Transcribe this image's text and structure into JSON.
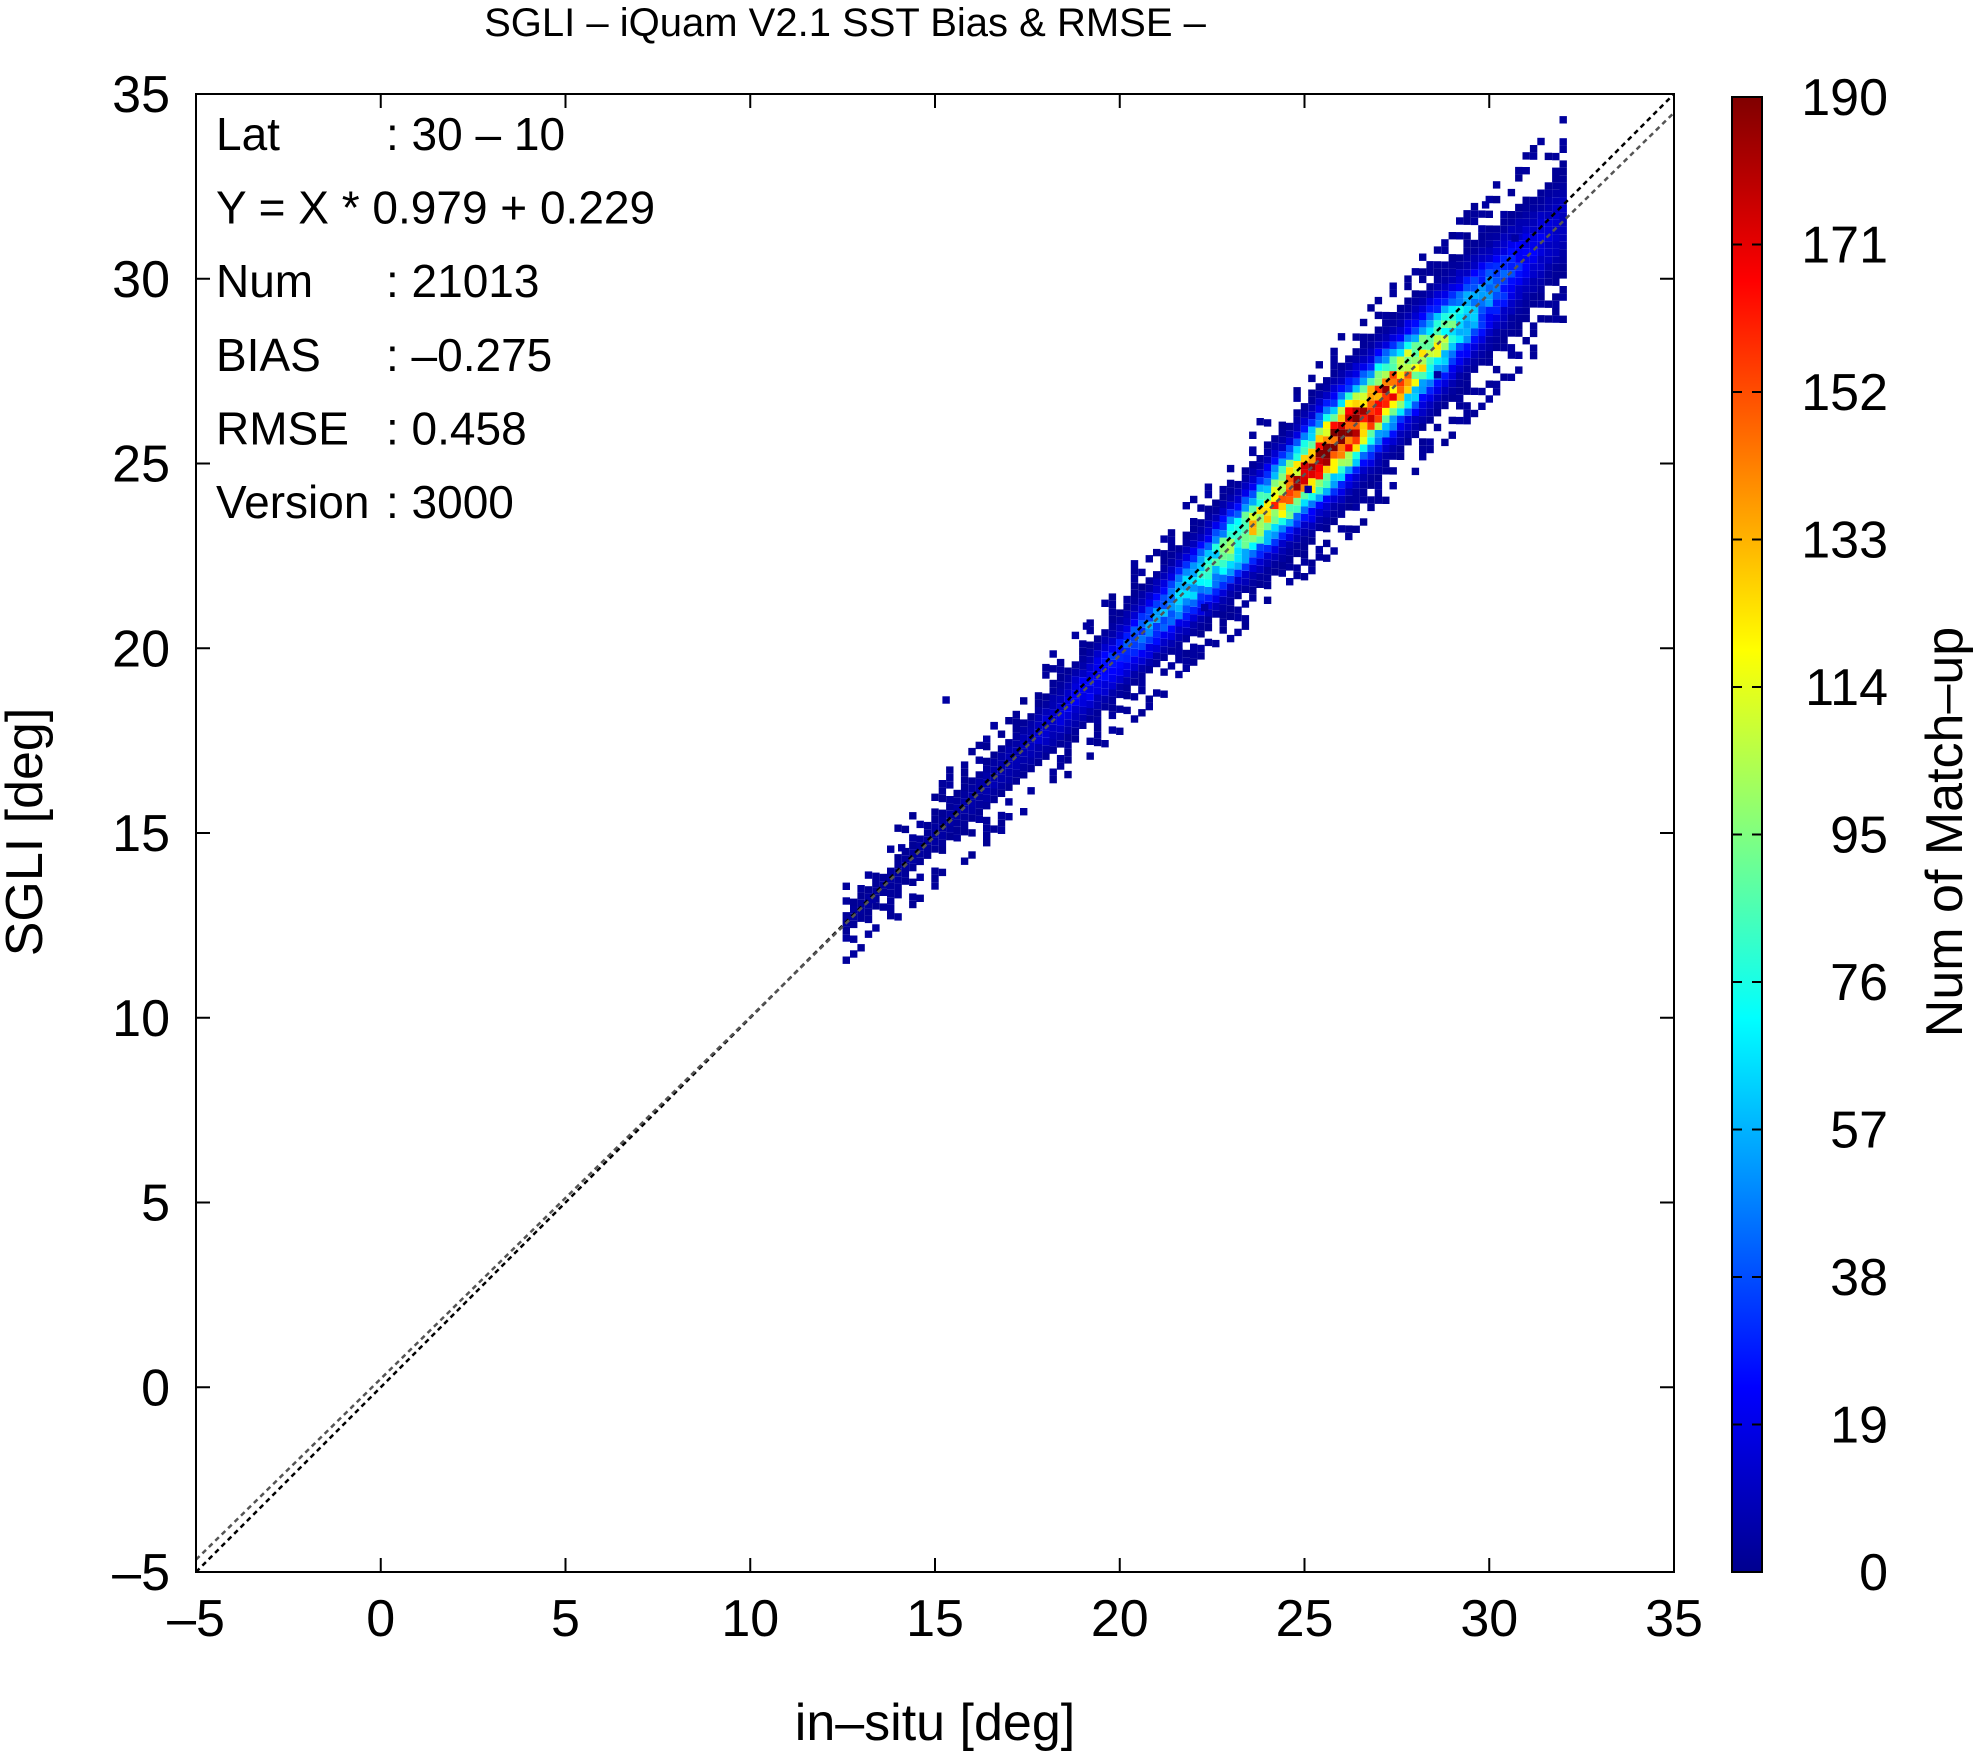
{
  "chart_data": {
    "type": "heatmap",
    "title": "SGLI – iQuam V2.1 SST Bias & RMSE  –",
    "xlabel": "in–situ [deg]",
    "ylabel": "SGLI [deg]",
    "colorbar_label": "Num of Match–up",
    "xlim": [
      -5,
      35
    ],
    "ylim": [
      -5,
      35
    ],
    "xticks": [
      "–5",
      "0",
      "5",
      "10",
      "15",
      "20",
      "25",
      "30",
      "35"
    ],
    "yticks": [
      "–5",
      "0",
      "5",
      "10",
      "15",
      "20",
      "25",
      "30",
      "35"
    ],
    "colorbar_ticks": [
      "0",
      "19",
      "38",
      "57",
      "76",
      "95",
      "114",
      "133",
      "152",
      "171",
      "190"
    ],
    "colorbar_range": [
      0,
      190
    ],
    "colormap": [
      "#00008f",
      "#0000ff",
      "#0080ff",
      "#00ffff",
      "#80ff80",
      "#ffff00",
      "#ff8000",
      "#ff0000",
      "#800000"
    ],
    "reference_lines": [
      {
        "name": "1:1",
        "slope": 1.0,
        "intercept": 0.0,
        "color": "#000000"
      },
      {
        "name": "fit",
        "slope": 0.979,
        "intercept": 0.229,
        "color": "#555555"
      }
    ],
    "density_ridge": {
      "x_from": 12.5,
      "x_to": 32.0,
      "peak_at_x": 25.5,
      "peak_count": 190,
      "count_at_ends": 3,
      "y_spread_deg": 0.7
    },
    "outliers": [
      [
        13.2,
        13.1
      ],
      [
        14.0,
        14.5
      ],
      [
        15.2,
        18.5
      ],
      [
        16.5,
        17.8
      ],
      [
        19.0,
        20.5
      ],
      [
        21.5,
        19.8
      ],
      [
        23.5,
        25.2
      ],
      [
        25.0,
        24.2
      ],
      [
        28.5,
        27.3
      ],
      [
        29.8,
        31.9
      ],
      [
        30.6,
        31.0
      ],
      [
        22.2,
        21.0
      ],
      [
        14.5,
        13.7
      ]
    ],
    "stats": [
      {
        "label": "Lat",
        "value": ": 30 – 10"
      },
      {
        "label": "Y = X * 0.979 + 0.229",
        "value": ""
      },
      {
        "label": "Num",
        "value": ": 21013"
      },
      {
        "label": "BIAS",
        "value": ": –0.275"
      },
      {
        "label": "RMSE",
        "value": ": 0.458"
      },
      {
        "label": "Version",
        "value": ": 3000"
      }
    ],
    "grid": false,
    "legend": "colorbar-right"
  }
}
